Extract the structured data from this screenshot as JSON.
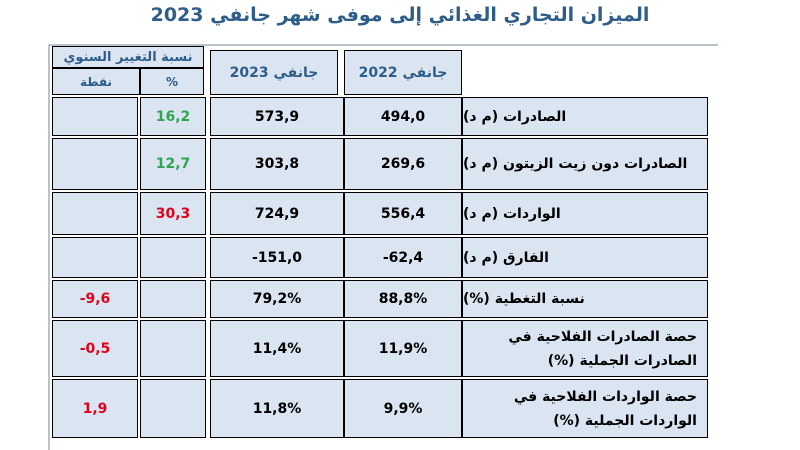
{
  "title": "الميزان التجاري الغذائي إلى موفى شهر جانفي 2023",
  "headers": {
    "col_2022": "جانفي 2022",
    "col_2023": "جانفي 2023",
    "annual_change": "نسبة التغيير السنوي",
    "percent": "%",
    "points": "نقطة"
  },
  "rows": [
    {
      "label": "الصادرات (م د)",
      "v2022": "494,0",
      "v2023": "573,9",
      "pct": "16,2",
      "pts": ""
    },
    {
      "label": "الصادرات دون زيت الزيتون (م د)",
      "v2022": "269,6",
      "v2023": "303,8",
      "pct": "12,7",
      "pts": ""
    },
    {
      "label": "الواردات (م د)",
      "v2022": "556,4",
      "v2023": "724,9",
      "pct": "30,3",
      "pts": ""
    },
    {
      "label": "الفارق (م د)",
      "v2022": "-62,4",
      "v2023": "-151,0",
      "pct": "",
      "pts": ""
    },
    {
      "label": "نسبة التغطية (%)",
      "v2022": "88,8%",
      "v2023": "79,2%",
      "pct": "",
      "pts": "-9,6"
    },
    {
      "label": "حصة الصادرات الفلاحية في الصادرات الجملية (%)",
      "v2022": "11,9%",
      "v2023": "11,4%",
      "pct": "",
      "pts": "-0,5"
    },
    {
      "label": "حصة الواردات الفلاحية في الواردات الجملية (%)",
      "v2022": "9,9%",
      "v2023": "11,8%",
      "pct": "",
      "pts": "1,9"
    }
  ],
  "colors": {
    "positive": "#2ea44f",
    "negative": "#e0001b",
    "header_text": "#2e5d8a",
    "cell_bg": "#dbe5f1"
  }
}
